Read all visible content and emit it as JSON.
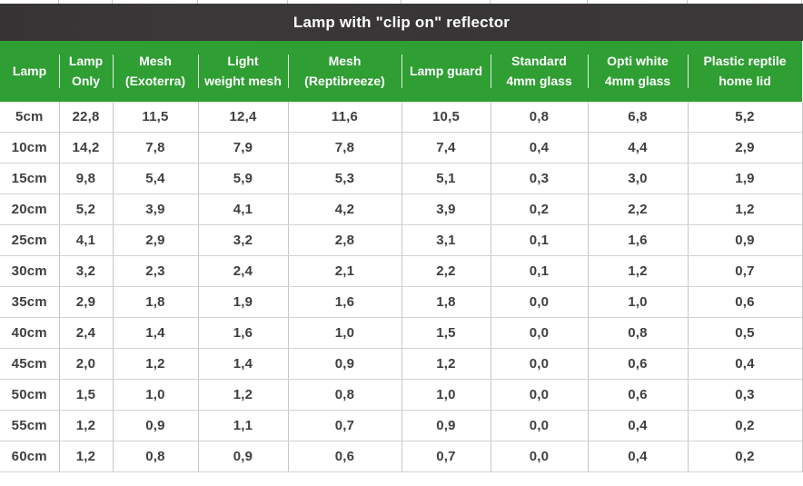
{
  "title": "Lamp with \"clip on\" reflector",
  "colors": {
    "title_bar": "#3a3738",
    "header_green": "#2f9e33",
    "header_text": "#ffffff",
    "cell_text": "#3f3f3f",
    "grid_border": "#c7c7c7"
  },
  "chart_data": {
    "type": "table",
    "title": "Lamp with \"clip on\" reflector",
    "columns": [
      "Lamp",
      "Lamp\nOnly",
      "Mesh\n(Exoterra)",
      "Light\nweight mesh",
      "Mesh\n(Reptibreeze)",
      "Lamp guard",
      "Standard\n4mm glass",
      "Opti white\n4mm glass",
      "Plastic reptile\nhome lid"
    ],
    "rows": [
      [
        "5cm",
        "22,8",
        "11,5",
        "12,4",
        "11,6",
        "10,5",
        "0,8",
        "6,8",
        "5,2"
      ],
      [
        "10cm",
        "14,2",
        "7,8",
        "7,9",
        "7,8",
        "7,4",
        "0,4",
        "4,4",
        "2,9"
      ],
      [
        "15cm",
        "9,8",
        "5,4",
        "5,9",
        "5,3",
        "5,1",
        "0,3",
        "3,0",
        "1,9"
      ],
      [
        "20cm",
        "5,2",
        "3,9",
        "4,1",
        "4,2",
        "3,9",
        "0,2",
        "2,2",
        "1,2"
      ],
      [
        "25cm",
        "4,1",
        "2,9",
        "3,2",
        "2,8",
        "3,1",
        "0,1",
        "1,6",
        "0,9"
      ],
      [
        "30cm",
        "3,2",
        "2,3",
        "2,4",
        "2,1",
        "2,2",
        "0,1",
        "1,2",
        "0,7"
      ],
      [
        "35cm",
        "2,9",
        "1,8",
        "1,9",
        "1,6",
        "1,8",
        "0,0",
        "1,0",
        "0,6"
      ],
      [
        "40cm",
        "2,4",
        "1,4",
        "1,6",
        "1,0",
        "1,5",
        "0,0",
        "0,8",
        "0,5"
      ],
      [
        "45cm",
        "2,0",
        "1,2",
        "1,4",
        "0,9",
        "1,2",
        "0,0",
        "0,6",
        "0,4"
      ],
      [
        "50cm",
        "1,5",
        "1,0",
        "1,2",
        "0,8",
        "1,0",
        "0,0",
        "0,6",
        "0,3"
      ],
      [
        "55cm",
        "1,2",
        "0,9",
        "1,1",
        "0,7",
        "0,9",
        "0,0",
        "0,4",
        "0,2"
      ],
      [
        "60cm",
        "1,2",
        "0,8",
        "0,9",
        "0,6",
        "0,7",
        "0,0",
        "0,4",
        "0,2"
      ]
    ]
  }
}
